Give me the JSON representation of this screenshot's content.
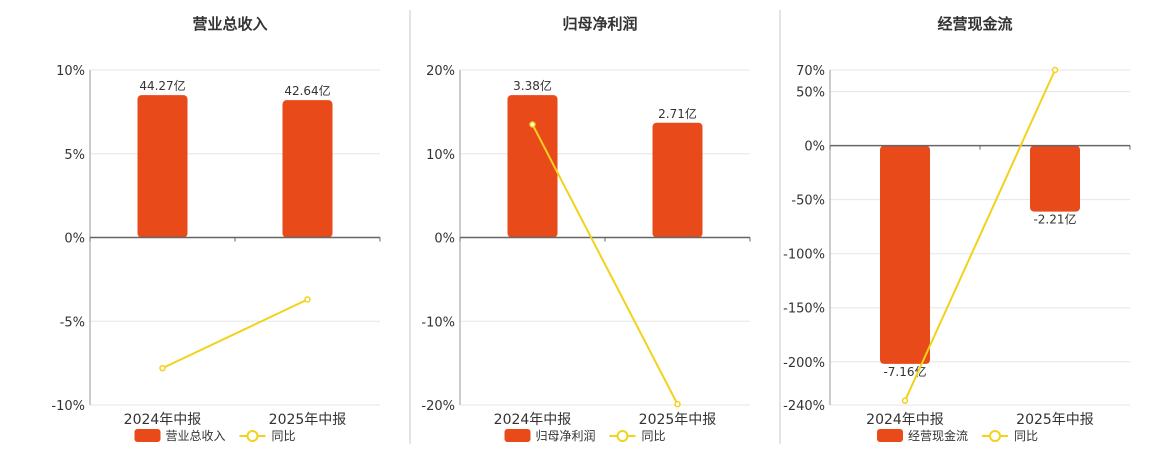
{
  "colors": {
    "bar": "#e84a1a",
    "line": "#f2d21a",
    "axis": "#666666",
    "grid": "#e6e6e6",
    "divider": "#c8c8c8",
    "text": "#333333"
  },
  "legend_line_label": "同比",
  "chart_data": [
    {
      "type": "bar",
      "title": "营业总收入",
      "categories": [
        "2024年中报",
        "2025年中报"
      ],
      "series": [
        {
          "name": "营业总收入",
          "kind": "bar",
          "values": [
            8.5,
            8.2
          ],
          "labels": [
            "44.27亿",
            "42.64亿"
          ]
        },
        {
          "name": "同比",
          "kind": "line",
          "values": [
            -7.8,
            -3.7
          ]
        }
      ],
      "ylim": [
        -10,
        10
      ],
      "yticks": [
        10,
        5,
        0,
        -5,
        -10
      ],
      "ytick_labels": [
        "10%",
        "5%",
        "0%",
        "-5%",
        "-10%"
      ],
      "grid": true,
      "legend": "bottom"
    },
    {
      "type": "bar",
      "title": "归母净利润",
      "categories": [
        "2024年中报",
        "2025年中报"
      ],
      "series": [
        {
          "name": "归母净利润",
          "kind": "bar",
          "values": [
            17,
            13.7
          ],
          "labels": [
            "3.38亿",
            "2.71亿"
          ]
        },
        {
          "name": "同比",
          "kind": "line",
          "values": [
            13.5,
            -19.9
          ]
        }
      ],
      "ylim": [
        -20,
        20
      ],
      "yticks": [
        20,
        10,
        0,
        -10,
        -20
      ],
      "ytick_labels": [
        "20%",
        "10%",
        "0%",
        "-10%",
        "-20%"
      ],
      "grid": true,
      "legend": "bottom"
    },
    {
      "type": "bar",
      "title": "经营现金流",
      "categories": [
        "2024年中报",
        "2025年中报"
      ],
      "series": [
        {
          "name": "经营现金流",
          "kind": "bar",
          "values": [
            -202,
            -61
          ],
          "labels": [
            "-7.16亿",
            "-2.21亿"
          ]
        },
        {
          "name": "同比",
          "kind": "line",
          "values": [
            -236,
            70
          ]
        }
      ],
      "ylim": [
        -240,
        70
      ],
      "yticks": [
        70,
        50,
        0,
        -50,
        -100,
        -150,
        -200,
        -240
      ],
      "ytick_labels": [
        "70%",
        "50%",
        "0%",
        "-50%",
        "-100%",
        "-150%",
        "-200%",
        "-240%"
      ],
      "grid": true,
      "legend": "bottom"
    }
  ]
}
